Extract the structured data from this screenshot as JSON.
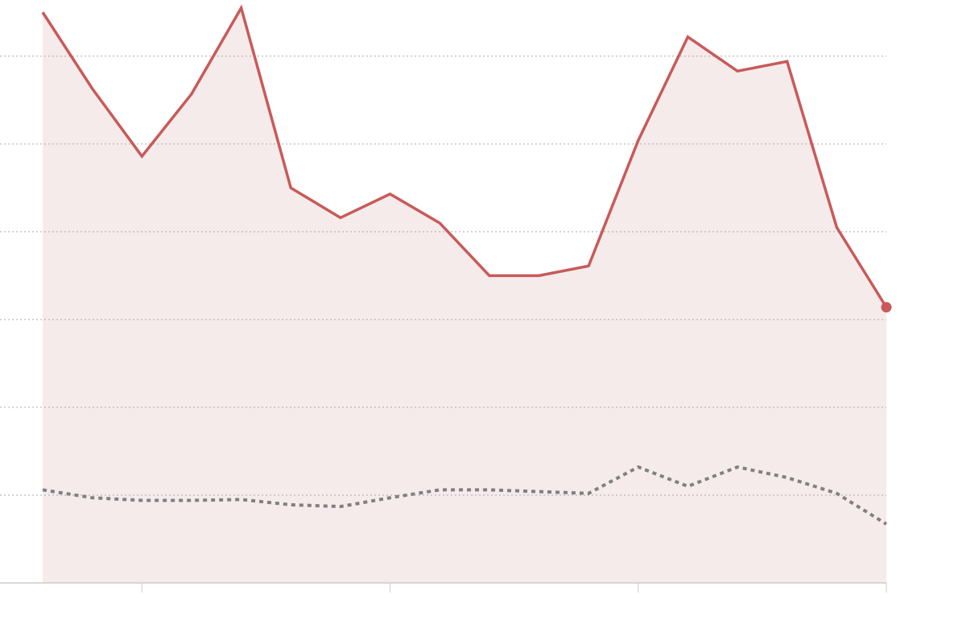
{
  "chart_data": {
    "type": "line",
    "x": [
      0,
      1,
      2,
      3,
      4,
      5,
      6,
      7,
      8,
      9,
      10,
      11,
      12,
      13,
      14,
      15,
      16,
      17
    ],
    "xlim": [
      -0.86,
      17
    ],
    "xticks": [
      2,
      7,
      12,
      17
    ],
    "ylim": [
      0,
      6.64
    ],
    "yticks": [
      1,
      2,
      3,
      4,
      5,
      6
    ],
    "grid": true,
    "series": [
      {
        "color": "#c85a5a",
        "area_color": "#f6ebeb",
        "end_marker": true,
        "values": [
          6.5,
          5.63,
          4.86,
          5.57,
          6.55,
          4.5,
          4.16,
          4.43,
          4.1,
          3.5,
          3.5,
          3.61,
          5.04,
          6.22,
          5.83,
          5.94,
          4.05,
          3.14
        ]
      },
      {
        "color": "#808080",
        "dashed": true,
        "values": [
          1.06,
          0.97,
          0.94,
          0.94,
          0.95,
          0.89,
          0.87,
          0.97,
          1.06,
          1.06,
          1.04,
          1.02,
          1.32,
          1.1,
          1.32,
          1.2,
          1.02,
          0.67
        ]
      }
    ]
  }
}
